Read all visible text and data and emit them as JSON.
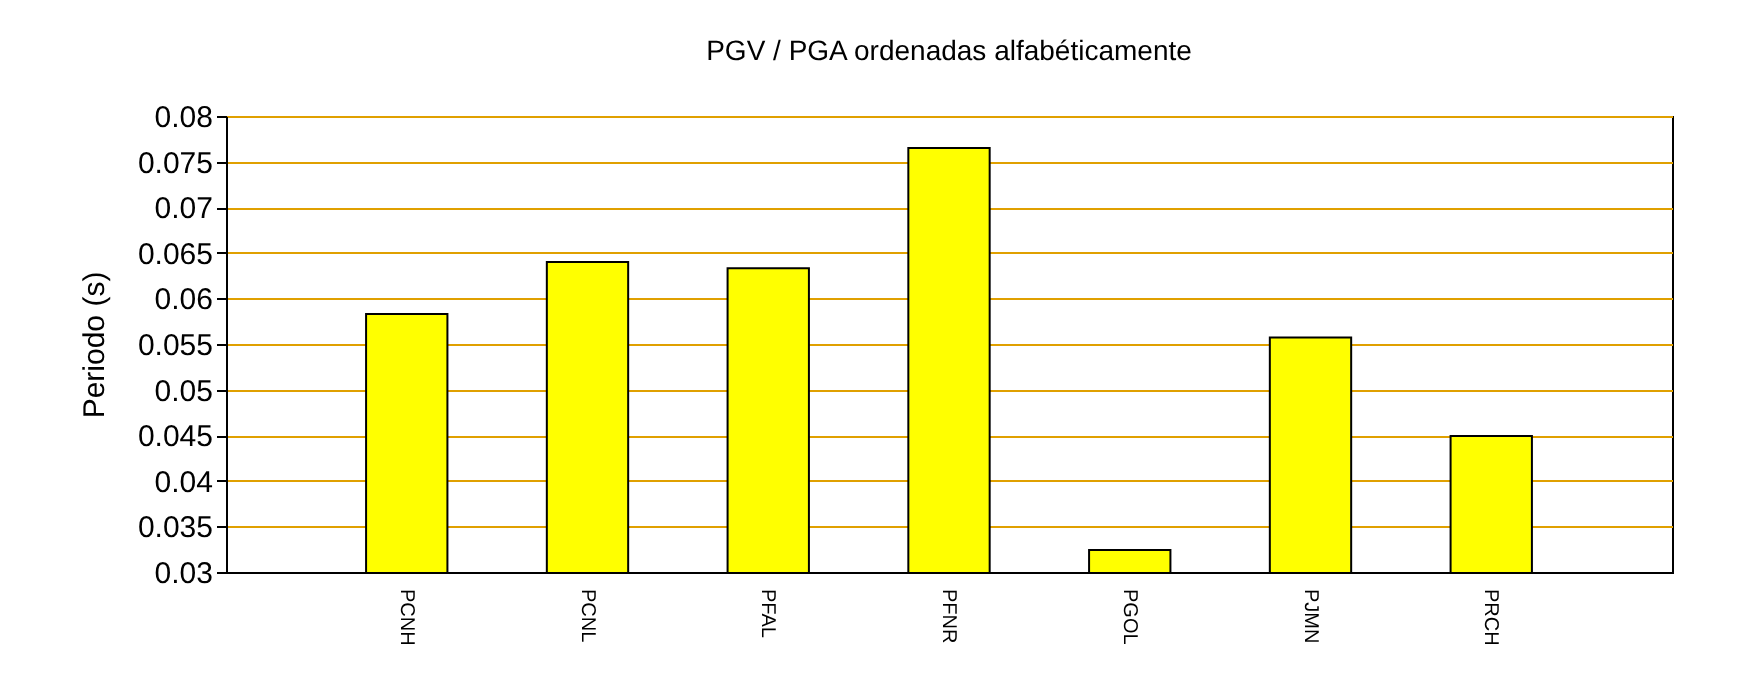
{
  "chart_data": {
    "type": "bar",
    "title": "PGV / PGA ordenadas alfabéticamente",
    "ylabel": "Periodo (s)",
    "categories": [
      "PCNH",
      "PCNL",
      "PFAL",
      "PFNR",
      "PGOL",
      "PJMN",
      "PRCH"
    ],
    "values": [
      0.0583,
      0.064,
      0.0633,
      0.0765,
      0.0324,
      0.0557,
      0.0449
    ],
    "color": "#ffff00",
    "ylim": [
      0.03,
      0.08
    ],
    "yticks": [
      0.03,
      0.035,
      0.04,
      0.045,
      0.05,
      0.055,
      0.06,
      0.065,
      0.07,
      0.075,
      0.08
    ],
    "grid": "y"
  }
}
